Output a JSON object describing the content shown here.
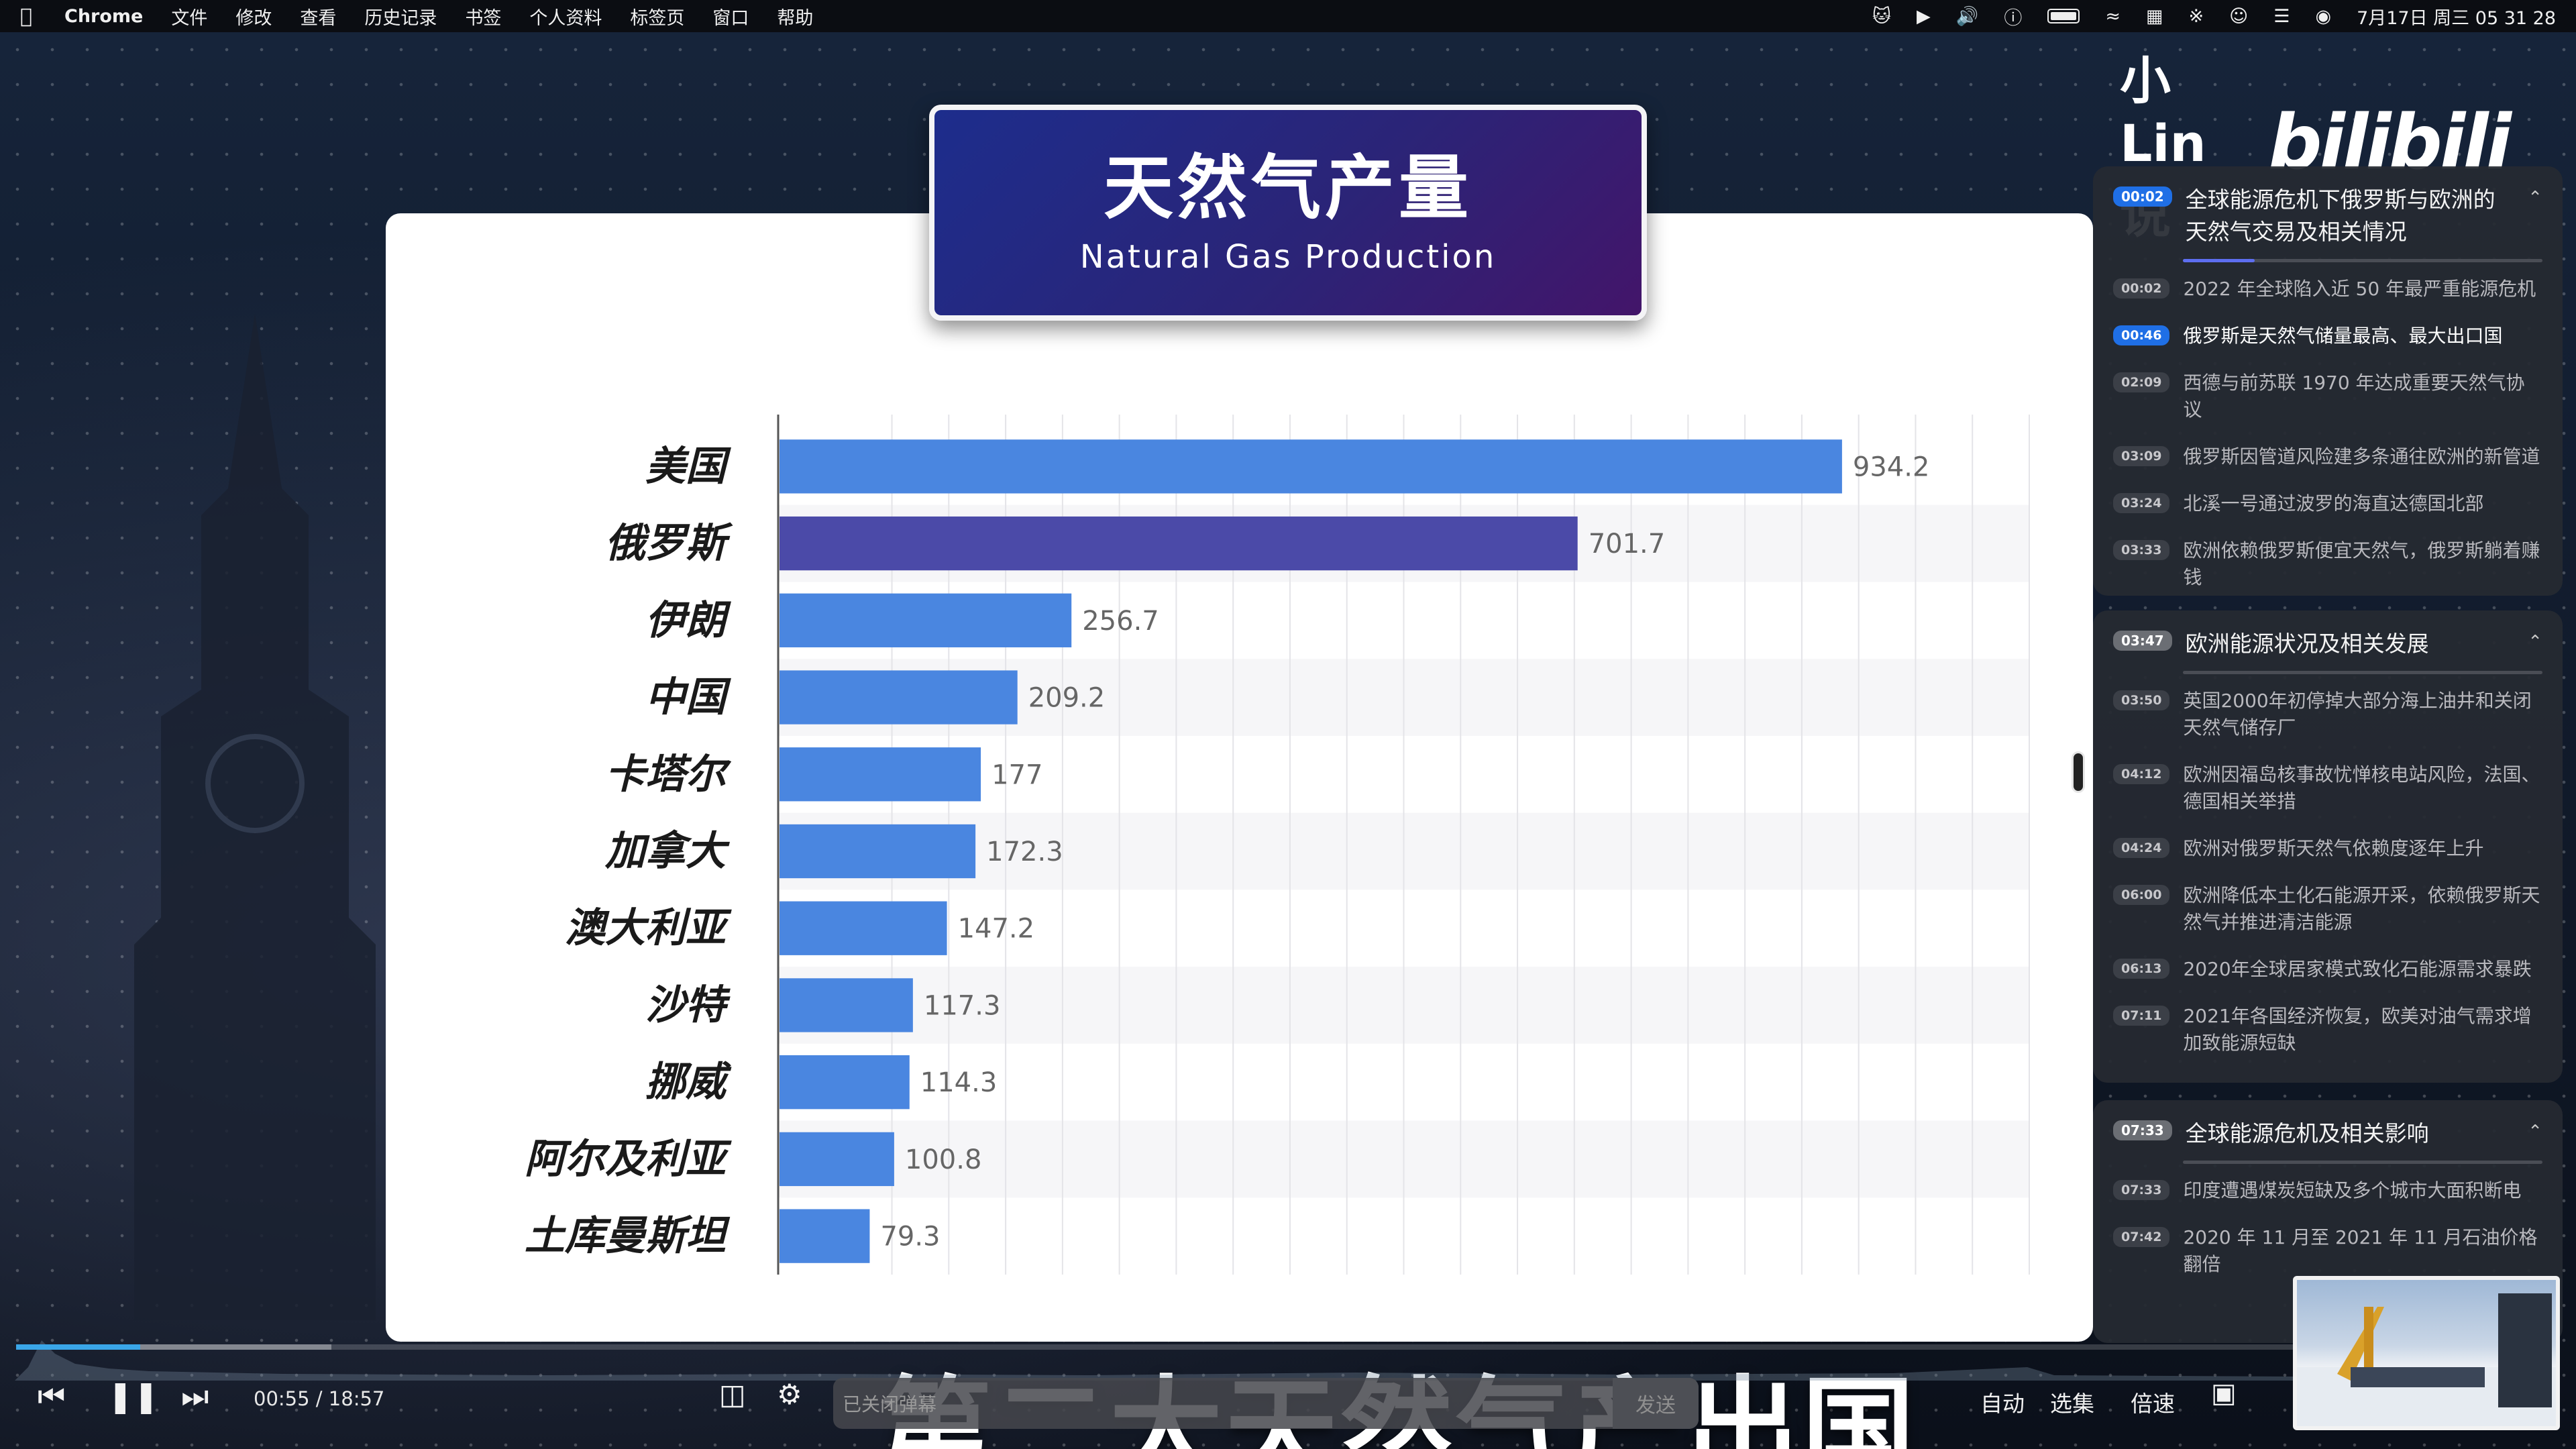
{
  "menubar": {
    "app": "Chrome",
    "items": [
      "文件",
      "修改",
      "查看",
      "历史记录",
      "书签",
      "个人资料",
      "标签页",
      "窗口",
      "帮助"
    ],
    "clock": "7月17日 周三 05 31 28"
  },
  "title_card": {
    "cn": "天然气产量",
    "en": "Natural Gas Production"
  },
  "chart_data": {
    "type": "bar",
    "orientation": "horizontal",
    "categories": [
      "美国",
      "俄罗斯",
      "伊朗",
      "中国",
      "卡塔尔",
      "加拿大",
      "澳大利亚",
      "沙特",
      "挪威",
      "阿尔及利亚",
      "土库曼斯坦"
    ],
    "values": [
      934.2,
      701.7,
      256.7,
      209.2,
      177,
      172.3,
      147.2,
      117.3,
      114.3,
      100.8,
      79.3
    ],
    "value_labels": [
      "934.2",
      "701.7",
      "256.7",
      "209.2",
      "177",
      "172.3",
      "147.2",
      "117.3",
      "114.3",
      "100.8",
      "79.3"
    ],
    "highlight_category": "俄罗斯",
    "bar_color": "#4a86e0",
    "highlight_color": "#4b4aa8",
    "xlim": [
      0,
      1100
    ],
    "grid": true
  },
  "logo": {
    "left": "小Lin说",
    "right": "bilibili"
  },
  "chapters": [
    {
      "time": "00:02",
      "title": "全球能源危机下俄罗斯与欧洲的天然气交易及相关情况",
      "active": true,
      "progress": 0.2,
      "items": [
        {
          "time": "00:02",
          "text": "2022 年全球陷入近 50 年最严重能源危机"
        },
        {
          "time": "00:46",
          "text": "俄罗斯是天然气储量最高、最大出口国",
          "current": true
        },
        {
          "time": "02:09",
          "text": "西德与前苏联 1970 年达成重要天然气协议"
        },
        {
          "time": "03:09",
          "text": "俄罗斯因管道风险建多条通往欧洲的新管道"
        },
        {
          "time": "03:24",
          "text": "北溪一号通过波罗的海直达德国北部"
        },
        {
          "time": "03:33",
          "text": "欧洲依赖俄罗斯便宜天然气，俄罗斯躺着赚钱"
        }
      ]
    },
    {
      "time": "03:47",
      "title": "欧洲能源状况及相关发展",
      "items": [
        {
          "time": "03:50",
          "text": "英国2000年初停掉大部分海上油井和关闭天然气储存厂"
        },
        {
          "time": "04:12",
          "text": "欧洲因福岛核事故忧惮核电站风险，法国、德国相关举措"
        },
        {
          "time": "04:24",
          "text": "欧洲对俄罗斯天然气依赖度逐年上升"
        },
        {
          "time": "06:00",
          "text": "欧洲降低本土化石能源开采，依赖俄罗斯天然气并推进清洁能源"
        },
        {
          "time": "06:13",
          "text": "2020年全球居家模式致化石能源需求暴跌"
        },
        {
          "time": "07:11",
          "text": "2021年各国经济恢复，欧美对油气需求增加致能源短缺"
        }
      ]
    },
    {
      "time": "07:33",
      "title": "全球能源危机及相关影响",
      "items": [
        {
          "time": "07:33",
          "text": "印度遭遇煤炭短缺及多个城市大面积断电"
        },
        {
          "time": "07:42",
          "text": "2020 年 11 月至 2021 年 11 月石油价格翻倍"
        }
      ]
    }
  ],
  "player": {
    "subtitle": "第二大天然气产出国",
    "current_time": "00:55",
    "separator": "/",
    "duration": "18:57",
    "progress": 0.049,
    "danmaku_placeholder": "已关闭弹幕",
    "send_label": "发送",
    "auto_label": "自动",
    "episodes_label": "选集",
    "speed_label": "倍速"
  }
}
